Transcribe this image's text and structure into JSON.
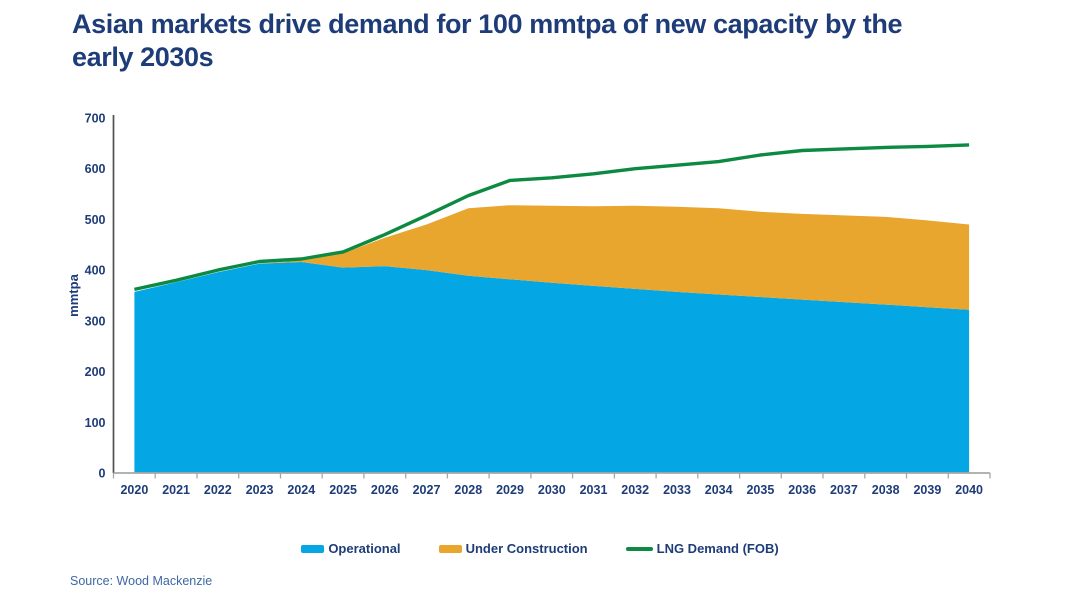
{
  "title": {
    "line1": "Asian markets drive demand for 100 mmtpa of new capacity by the",
    "line2": "early 2030s"
  },
  "source": "Source: Wood Mackenzie",
  "colors": {
    "operational": "#04a6e4",
    "under_construction": "#e9a62f",
    "lng_demand": "#0d8a41",
    "navy_text": "#1d3c78",
    "source_text": "#3e67a6",
    "y_axis_line": "#4f5054",
    "x_axis_line": "#a7a7a7"
  },
  "chart_data": {
    "type": "area",
    "stacked": true,
    "title": "Asian markets drive demand for 100 mmtpa of new capacity by the early 2030s",
    "xlabel": "",
    "ylabel": "mmtpa",
    "ylim": [
      0,
      700
    ],
    "yticks": [
      0,
      100,
      200,
      300,
      400,
      500,
      600,
      700
    ],
    "grid": false,
    "legend_position": "bottom",
    "x": [
      2020,
      2021,
      2022,
      2023,
      2024,
      2025,
      2026,
      2027,
      2028,
      2029,
      2030,
      2031,
      2032,
      2033,
      2034,
      2035,
      2036,
      2037,
      2038,
      2039,
      2040
    ],
    "series": [
      {
        "name": "Operational",
        "type": "area",
        "stack": true,
        "color": "#04a6e4",
        "values": [
          357,
          376,
          396,
          413,
          416,
          405,
          408,
          400,
          389,
          382,
          375,
          369,
          363,
          357,
          352,
          347,
          342,
          337,
          332,
          327,
          322
        ]
      },
      {
        "name": "Under Construction",
        "type": "area",
        "stack": true,
        "color": "#e9a62f",
        "values": [
          0,
          0,
          0,
          0,
          3,
          28,
          56,
          90,
          133,
          146,
          152,
          157,
          164,
          168,
          170,
          168,
          169,
          171,
          173,
          171,
          168
        ]
      },
      {
        "name": "LNG Demand (FOB)",
        "type": "line",
        "stack": false,
        "color": "#0d8a41",
        "values": [
          362,
          380,
          400,
          417,
          422,
          436,
          470,
          508,
          547,
          577,
          582,
          590,
          600,
          607,
          614,
          627,
          636,
          639,
          642,
          644,
          647
        ]
      }
    ]
  }
}
